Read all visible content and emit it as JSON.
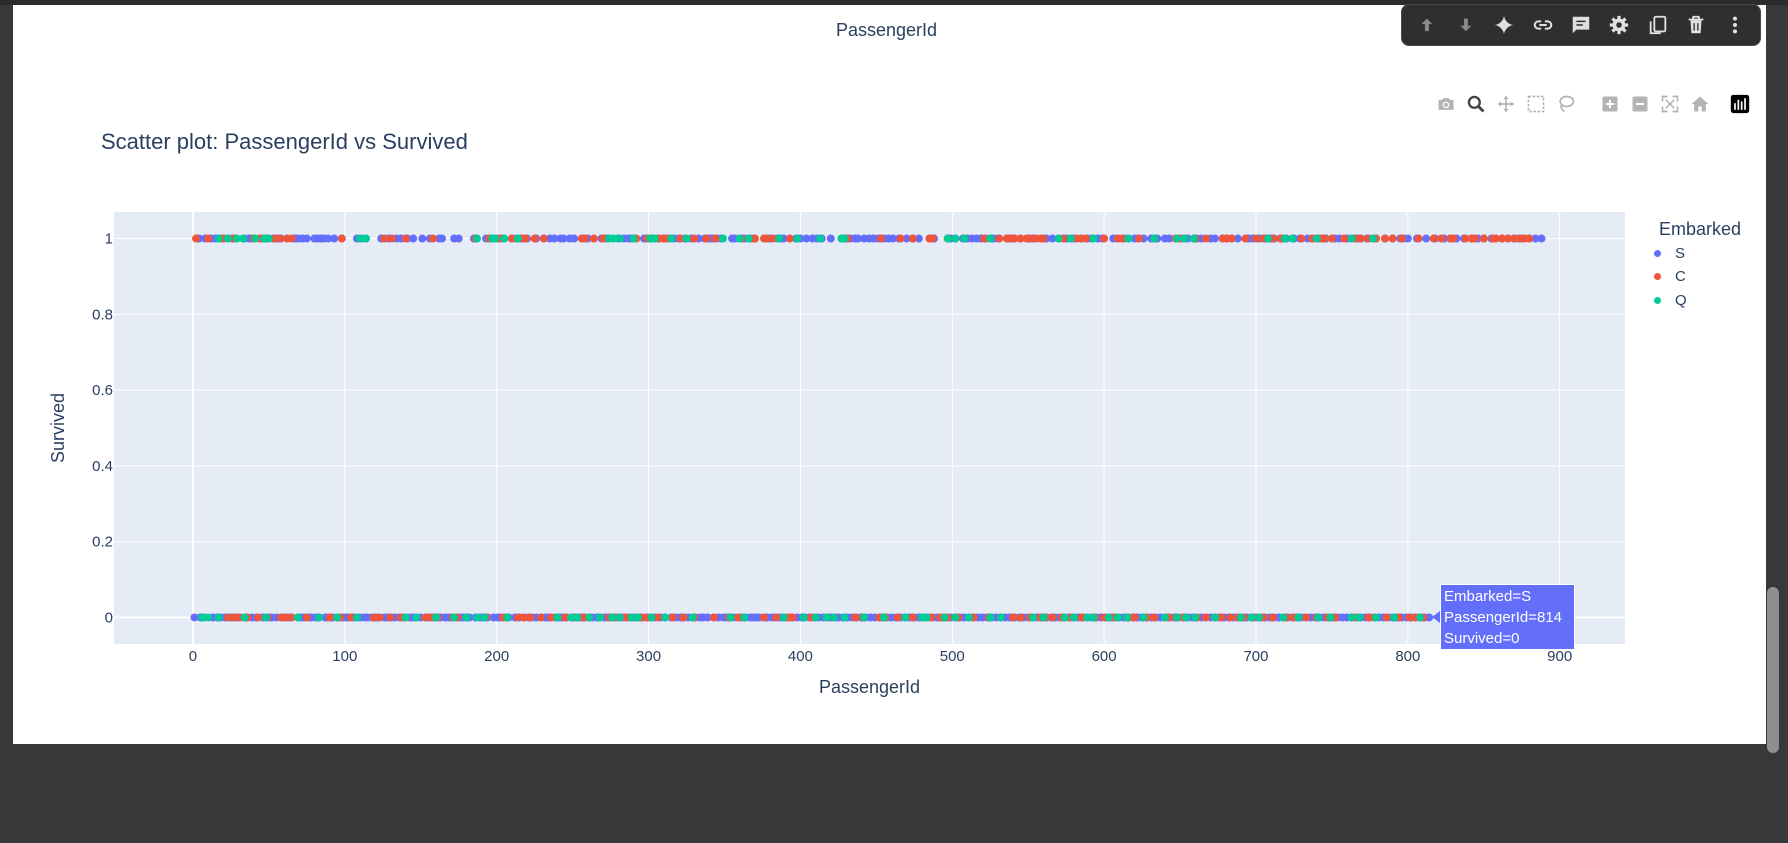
{
  "previous_output": {
    "axis_label": "PassengerId"
  },
  "cell_toolbar": {
    "items": [
      "move-up",
      "move-down",
      "ai-sparkle",
      "link",
      "comment",
      "settings",
      "mirror-cell",
      "delete",
      "more"
    ]
  },
  "modebar": {
    "items": [
      "Download plot as a png",
      "Zoom",
      "Pan",
      "Box Select",
      "Lasso Select",
      "Zoom in",
      "Zoom out",
      "Autoscale",
      "Reset axes",
      "Produced with Plotly"
    ]
  },
  "legend": {
    "title": "Embarked",
    "items": [
      {
        "label": "S",
        "color": "#636efa"
      },
      {
        "label": "C",
        "color": "#ef553b"
      },
      {
        "label": "Q",
        "color": "#00cc96"
      }
    ]
  },
  "hover": {
    "line1": "Embarked=S",
    "line2": "PassengerId=814",
    "line3": "Survived=0"
  },
  "chart_data": {
    "type": "scatter",
    "title": "Scatter plot: PassengerId vs Survived",
    "xlabel": "PassengerId",
    "ylabel": "Survived",
    "xlim": [
      -52,
      943
    ],
    "ylim": [
      -0.07,
      1.07
    ],
    "xticks": [
      "0",
      "100",
      "200",
      "300",
      "400",
      "500",
      "600",
      "700",
      "800",
      "900"
    ],
    "yticks": [
      "0",
      "0.2",
      "0.4",
      "0.6",
      "0.8",
      "1"
    ],
    "legend_position": "right",
    "grid": true,
    "plot_background": "#e5ecf6",
    "series": [
      {
        "name": "S",
        "color": "#636efa",
        "survived_1": [
          3,
          4,
          8,
          12,
          15,
          19,
          23,
          26,
          34,
          37,
          38,
          45,
          49,
          54,
          56,
          58,
          67,
          69,
          72,
          75,
          80,
          82,
          84,
          86,
          89,
          93,
          98,
          108,
          111,
          124,
          129,
          134,
          137,
          141,
          145,
          151,
          156,
          162,
          164,
          172,
          175,
          185,
          187,
          193,
          196,
          200,
          204,
          210,
          213,
          217,
          220,
          226,
          231,
          235,
          238,
          242,
          244,
          248,
          251,
          257,
          260,
          269,
          272,
          274,
          280,
          284,
          287,
          289,
          297,
          300,
          302,
          306,
          310,
          313,
          317,
          320,
          324,
          328,
          333,
          337,
          340,
          342,
          345,
          348,
          355,
          357,
          363,
          366,
          370,
          380,
          385,
          387,
          389,
          397,
          400,
          404,
          408,
          411,
          414,
          420,
          429,
          431,
          433,
          436,
          438,
          442,
          445,
          448,
          451,
          455,
          458,
          461,
          465,
          470,
          474,
          478,
          485,
          488,
          499,
          502,
          507,
          510,
          513,
          516,
          519,
          522,
          527,
          530,
          536,
          539,
          541,
          545,
          549,
          551,
          553,
          562,
          566,
          570,
          575,
          578,
          580,
          585,
          589,
          592,
          596,
          599,
          606,
          609,
          613,
          616,
          620,
          622,
          626,
          631,
          635,
          640,
          643,
          651,
          655,
          659,
          661,
          664,
          670,
          673,
          678,
          681,
          684,
          688,
          695,
          698,
          702,
          706,
          708,
          710,
          712,
          717,
          720,
          725,
          729,
          734,
          737,
          742,
          744,
          746,
          752,
          755,
          760,
          766,
          768,
          773,
          779,
          785,
          790,
          795,
          797,
          800,
          806,
          812,
          818,
          824,
          828,
          832,
          837,
          842,
          846,
          850,
          855,
          862,
          866,
          870,
          873,
          876,
          880,
          884,
          888
        ],
        "survived_0": [
          1,
          5,
          7,
          13,
          16,
          18,
          21,
          25,
          28,
          30,
          35,
          39,
          42,
          46,
          51,
          52,
          55,
          60,
          62,
          64,
          71,
          73,
          77,
          78,
          81,
          83,
          87,
          88,
          91,
          92,
          95,
          96,
          99,
          101,
          102,
          105,
          106,
          110,
          113,
          115,
          118,
          120,
          122,
          126,
          128,
          131,
          133,
          136,
          139,
          143,
          145,
          147,
          150,
          154,
          155,
          158,
          160,
          163,
          166,
          168,
          170,
          174,
          176,
          178,
          180,
          182,
          186,
          189,
          191,
          194,
          198,
          201,
          202,
          206,
          208,
          212,
          215,
          218,
          221,
          223,
          226,
          229,
          232,
          234,
          236,
          239,
          241,
          243,
          246,
          250,
          252,
          254,
          256,
          258,
          261,
          263,
          266,
          268,
          271,
          273,
          276,
          278,
          281,
          283,
          286,
          288,
          291,
          294,
          296,
          299,
          301,
          304,
          308,
          311,
          315,
          318,
          321,
          323,
          326,
          329,
          331,
          334,
          336,
          339,
          343,
          346,
          349,
          351,
          353,
          356,
          359,
          361,
          364,
          367,
          369,
          371,
          373,
          376,
          378,
          381,
          383,
          386,
          388,
          390,
          393,
          395,
          398,
          401,
          403,
          406,
          409,
          412,
          415,
          418,
          420,
          423,
          425,
          428,
          431,
          434,
          437,
          440,
          443,
          446,
          449,
          452,
          454,
          457,
          460,
          463,
          466,
          469,
          472,
          475,
          478,
          481,
          484,
          487,
          490,
          493,
          496,
          499,
          502,
          505,
          508,
          511,
          514,
          517,
          520,
          523,
          526,
          529,
          532,
          535,
          538,
          541,
          544,
          547,
          550,
          553,
          556,
          559,
          562,
          565,
          568,
          571,
          574,
          577,
          580,
          583,
          586,
          589,
          592,
          595,
          598,
          601,
          604,
          607,
          610,
          613,
          616,
          619,
          622,
          625,
          628,
          631,
          634,
          637,
          640,
          643,
          646,
          649,
          652,
          655,
          658,
          661,
          664,
          667,
          670,
          673,
          676,
          679,
          682,
          685,
          688,
          691,
          694,
          697,
          700,
          703,
          706,
          709,
          712,
          715,
          718,
          721,
          724,
          727,
          730,
          733,
          736,
          739,
          742,
          745,
          748,
          751,
          754,
          757,
          760,
          763,
          766,
          769,
          772,
          775,
          778,
          781,
          784,
          787,
          790,
          793,
          796,
          799,
          802,
          805,
          808,
          811,
          814
        ]
      },
      {
        "name": "C",
        "color": "#ef553b",
        "survived_1": [
          2,
          10,
          20,
          27,
          40,
          44,
          53,
          57,
          62,
          65,
          98,
          126,
          131,
          140,
          158,
          186,
          195,
          202,
          210,
          216,
          219,
          225,
          231,
          256,
          258,
          264,
          270,
          292,
          299,
          307,
          310,
          312,
          321,
          330,
          338,
          344,
          361,
          368,
          370,
          376,
          378,
          382,
          393,
          431,
          453,
          466,
          474,
          485,
          487,
          497,
          508,
          521,
          525,
          531,
          536,
          538,
          541,
          545,
          549,
          551,
          555,
          558,
          560,
          573,
          582,
          585,
          588,
          600,
          609,
          612,
          623,
          633,
          647,
          650,
          660,
          667,
          678,
          681,
          684,
          693,
          700,
          705,
          711,
          716,
          717,
          730,
          737,
          740,
          742,
          745,
          750,
          758,
          765,
          769,
          774,
          779,
          785,
          790,
          796,
          807,
          817,
          822,
          828,
          830,
          838,
          842,
          844,
          850,
          856,
          858,
          862,
          866,
          870,
          874,
          877,
          880
        ],
        "survived_0": [
          23,
          27,
          31,
          36,
          43,
          49,
          58,
          61,
          65,
          75,
          90,
          97,
          104,
          119,
          123,
          130,
          137,
          140,
          153,
          157,
          161,
          171,
          174,
          193,
          204,
          214,
          218,
          222,
          229,
          236,
          245,
          250,
          257,
          261,
          274,
          280,
          285,
          293,
          295,
          299,
          306,
          316,
          323,
          330,
          343,
          353,
          359,
          362,
          376,
          384,
          390,
          392,
          395,
          407,
          422,
          436,
          441,
          452,
          456,
          464,
          474,
          486,
          492,
          494,
          497,
          504,
          514,
          524,
          532,
          540,
          545,
          551,
          558,
          561,
          566,
          572,
          578,
          585,
          594,
          600,
          606,
          616,
          620,
          628,
          633,
          642,
          647,
          652,
          661,
          667,
          673,
          677,
          683,
          688,
          692,
          698,
          705,
          711,
          720,
          725,
          733,
          740,
          747,
          752,
          765,
          774,
          778,
          786,
          794,
          801,
          805,
          810
        ]
      },
      {
        "name": "Q",
        "color": "#00cc96",
        "survived_1": [
          17,
          23,
          29,
          33,
          41,
          47,
          50,
          110,
          114,
          187,
          197,
          199,
          205,
          214,
          274,
          277,
          281,
          290,
          301,
          304,
          315,
          325,
          349,
          360,
          366,
          386,
          398,
          413,
          427,
          429,
          497,
          502,
          508,
          525,
          570,
          578,
          593,
          616,
          633,
          648,
          653,
          659,
          708,
          719,
          724,
          740,
          763,
          777
        ],
        "survived_0": [
          6,
          10,
          17,
          34,
          48,
          69,
          83,
          95,
          108,
          140,
          147,
          160,
          172,
          180,
          187,
          192,
          207,
          240,
          249,
          253,
          261,
          268,
          276,
          281,
          289,
          293,
          302,
          311,
          329,
          354,
          363,
          389,
          402,
          410,
          417,
          422,
          429,
          442,
          455,
          469,
          480,
          483,
          495,
          502,
          511,
          525,
          532,
          553,
          560,
          574,
          580,
          589,
          593,
          603,
          609,
          615,
          626,
          640,
          648,
          654,
          660,
          673,
          690,
          697,
          702,
          718,
          728,
          741,
          749,
          763,
          768,
          779,
          791,
          808
        ]
      }
    ]
  }
}
